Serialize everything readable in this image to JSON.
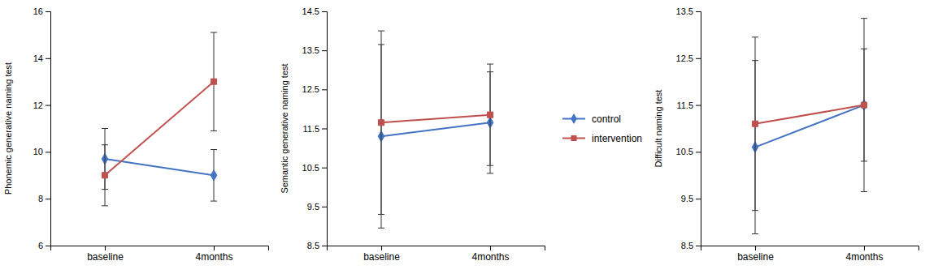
{
  "chart_data": [
    {
      "type": "line",
      "ylabel": "Phonemic generative naming test",
      "categories": [
        "baseline",
        "4months"
      ],
      "ylim": [
        6,
        16
      ],
      "yticks": [
        6,
        8,
        10,
        12,
        14,
        16
      ],
      "grid": false,
      "series": [
        {
          "name": "control",
          "color": "#4472C4",
          "marker": "diamond",
          "values": [
            9.7,
            9.0
          ],
          "yerr": [
            1.3,
            1.1
          ]
        },
        {
          "name": "intervention",
          "color": "#C0504D",
          "marker": "square",
          "values": [
            9.0,
            13.0
          ],
          "yerr": [
            1.3,
            2.1
          ]
        }
      ]
    },
    {
      "type": "line",
      "ylabel": "Semantic generative naming test",
      "categories": [
        "baseline",
        "4months"
      ],
      "ylim": [
        8.5,
        14.5
      ],
      "yticks": [
        8.5,
        9.5,
        10.5,
        11.5,
        12.5,
        13.5,
        14.5
      ],
      "grid": false,
      "legend": "right",
      "series": [
        {
          "name": "control",
          "color": "#4472C4",
          "marker": "diamond",
          "values": [
            11.3,
            11.65
          ],
          "yerr": [
            2.35,
            1.3
          ]
        },
        {
          "name": "intervention",
          "color": "#C0504D",
          "marker": "square",
          "values": [
            11.65,
            11.85
          ],
          "yerr": [
            2.35,
            1.3
          ]
        }
      ]
    },
    {
      "type": "line",
      "ylabel": "Difficult naming test",
      "categories": [
        "baseline",
        "4months"
      ],
      "ylim": [
        8.5,
        13.5
      ],
      "yticks": [
        8.5,
        9.5,
        10.5,
        11.5,
        12.5,
        13.5
      ],
      "grid": false,
      "series": [
        {
          "name": "control",
          "color": "#4472C4",
          "marker": "diamond",
          "values": [
            10.6,
            11.5
          ],
          "yerr": [
            1.85,
            1.2
          ]
        },
        {
          "name": "intervention",
          "color": "#C0504D",
          "marker": "square",
          "values": [
            11.1,
            11.5
          ],
          "yerr": [
            1.85,
            1.85
          ]
        }
      ]
    }
  ]
}
